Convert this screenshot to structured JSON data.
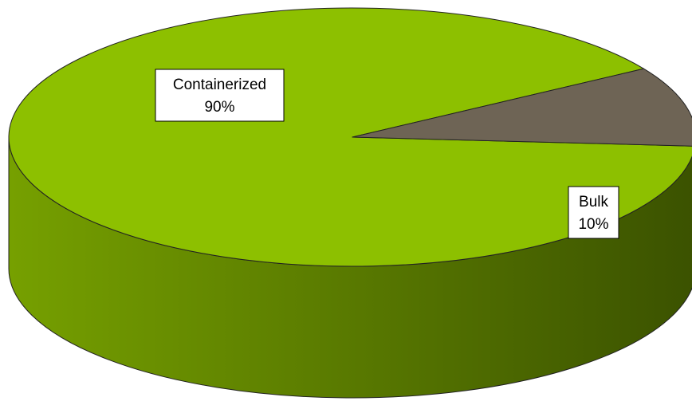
{
  "chart_data": {
    "type": "pie",
    "style": "3d",
    "legend": "none",
    "slices": [
      {
        "label": "Containerized",
        "value": 90,
        "value_label": "90%",
        "color": "#8dc000",
        "side_dark": "#3b5200",
        "side_light": "#76a000"
      },
      {
        "label": "Bulk",
        "value": 10,
        "value_label": "10%",
        "color": "#6e6455",
        "side_dark": "#1e1b17",
        "side_light": "#3a3530"
      }
    ]
  }
}
